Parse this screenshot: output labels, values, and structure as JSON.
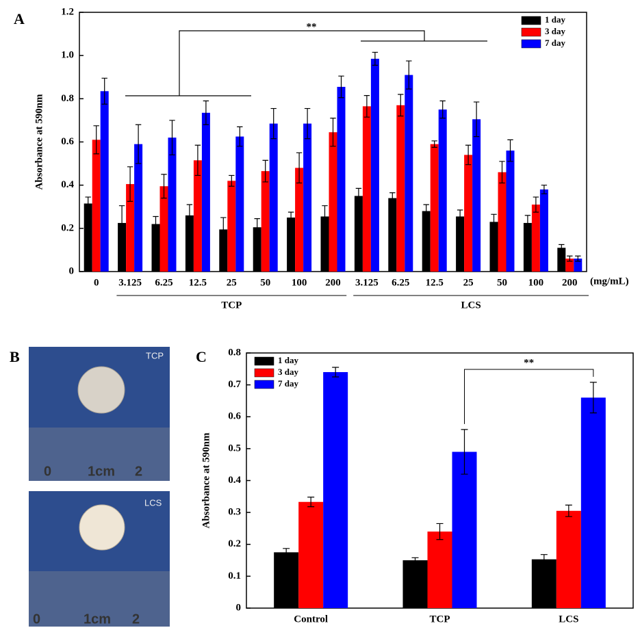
{
  "panel_labels": [
    "A",
    "B",
    "C"
  ],
  "photos": [
    {
      "label": "TCP",
      "ruler": [
        "0",
        "1cm",
        "2"
      ]
    },
    {
      "label": "LCS",
      "ruler": [
        "0",
        "1cm",
        "2"
      ]
    }
  ],
  "chart_data": [
    {
      "type": "bar",
      "y_label": "Absorbance at 590nm",
      "x_unit": "(mg/mL)",
      "groups": [
        "TCP",
        "LCS"
      ],
      "annotations": [
        "**"
      ],
      "categories": [
        "0",
        "3.125",
        "6.25",
        "12.5",
        "25",
        "50",
        "100",
        "200",
        "3.125",
        "6.25",
        "12.5",
        "25",
        "50",
        "100",
        "200"
      ],
      "series": [
        {
          "name": "1 day",
          "color": "#000000",
          "values": [
            0.315,
            0.225,
            0.22,
            0.26,
            0.195,
            0.205,
            0.25,
            0.255,
            0.35,
            0.34,
            0.28,
            0.255,
            0.23,
            0.225,
            0.11
          ],
          "errors": [
            0.03,
            0.08,
            0.035,
            0.05,
            0.055,
            0.04,
            0.025,
            0.05,
            0.035,
            0.025,
            0.03,
            0.03,
            0.035,
            0.035,
            0.015
          ]
        },
        {
          "name": "3 day",
          "color": "#ff0000",
          "values": [
            0.61,
            0.405,
            0.395,
            0.515,
            0.42,
            0.465,
            0.48,
            0.645,
            0.765,
            0.77,
            0.59,
            0.54,
            0.46,
            0.31,
            0.06
          ],
          "errors": [
            0.065,
            0.08,
            0.055,
            0.07,
            0.025,
            0.05,
            0.07,
            0.065,
            0.05,
            0.05,
            0.015,
            0.045,
            0.05,
            0.035,
            0.012
          ]
        },
        {
          "name": "7 day",
          "color": "#0000ff",
          "values": [
            0.835,
            0.59,
            0.62,
            0.735,
            0.625,
            0.685,
            0.685,
            0.855,
            0.985,
            0.91,
            0.75,
            0.705,
            0.56,
            0.38,
            0.06
          ],
          "errors": [
            0.06,
            0.09,
            0.08,
            0.055,
            0.045,
            0.07,
            0.07,
            0.05,
            0.03,
            0.065,
            0.04,
            0.08,
            0.05,
            0.02,
            0.012
          ]
        }
      ],
      "ylim": [
        0,
        1.2
      ],
      "yticks": [
        0,
        0.2,
        0.4,
        0.6,
        0.8,
        {
          "value": 1,
          "label": "1.0"
        },
        1.2
      ],
      "legend": "upper right"
    },
    {
      "type": "bar",
      "y_label": "Absorbance at 590nm",
      "annotations": [
        "**"
      ],
      "categories": [
        "Control",
        "TCP",
        "LCS"
      ],
      "series": [
        {
          "name": "1 day",
          "color": "#000000",
          "values": [
            0.175,
            0.15,
            0.153
          ],
          "errors": [
            0.012,
            0.008,
            0.015
          ]
        },
        {
          "name": "3 day",
          "color": "#ff0000",
          "values": [
            0.333,
            0.24,
            0.305
          ],
          "errors": [
            0.015,
            0.025,
            0.018
          ]
        },
        {
          "name": "7 day",
          "color": "#0000ff",
          "values": [
            0.74,
            0.49,
            0.66
          ],
          "errors": [
            0.015,
            0.07,
            0.048
          ]
        }
      ],
      "ylim": [
        0,
        0.8
      ],
      "yticks": [
        0,
        0.1,
        0.2,
        0.3,
        0.4,
        0.5,
        0.6,
        0.7,
        0.8
      ],
      "legend": "upper left"
    }
  ]
}
